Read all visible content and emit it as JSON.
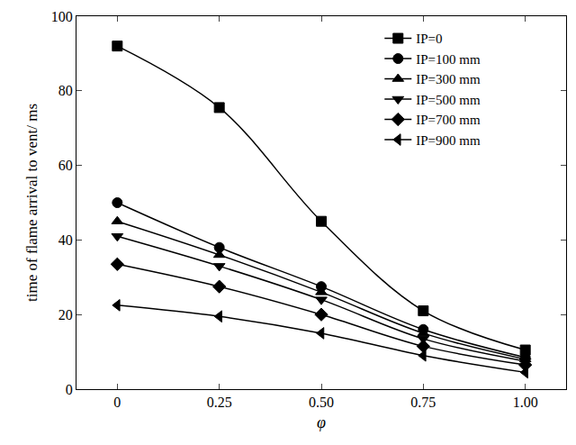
{
  "chart_data": {
    "type": "line",
    "x_label": "φ",
    "y_label": "time of flame arrival to vent/ ms",
    "x": [
      0,
      0.25,
      0.5,
      0.75,
      1
    ],
    "xlim": [
      -0.1,
      1.1
    ],
    "xticks": [
      0,
      0.25,
      {
        "value": 0.5,
        "label": "0.50"
      },
      0.75,
      {
        "value": 1,
        "label": "1.00"
      }
    ],
    "ylim": [
      0,
      100
    ],
    "yticks": [
      0,
      20,
      40,
      60,
      80,
      100
    ],
    "grid": false,
    "legend": "top right",
    "series": [
      {
        "name": "IP=0",
        "color": "#000000",
        "marker": "square",
        "line_style": "solid",
        "values": [
          92,
          75.5,
          45,
          21,
          10.5
        ]
      },
      {
        "name": "IP=100 mm",
        "color": "#000000",
        "marker": "circle",
        "line_style": "solid",
        "values": [
          50,
          38,
          27.5,
          16,
          8.5
        ]
      },
      {
        "name": "IP=300 mm",
        "color": "#000000",
        "marker": "triangle-up",
        "line_style": "solid",
        "values": [
          45,
          36,
          26,
          15,
          8
        ]
      },
      {
        "name": "IP=500 mm",
        "color": "#000000",
        "marker": "triangle-down",
        "line_style": "solid",
        "values": [
          41,
          33,
          24,
          13.5,
          7.5
        ]
      },
      {
        "name": "IP=700 mm",
        "color": "#000000",
        "marker": "diamond",
        "line_style": "solid",
        "values": [
          33.5,
          27.5,
          20,
          11.5,
          6.5
        ]
      },
      {
        "name": "IP=900 mm",
        "color": "#000000",
        "marker": "triangle-left",
        "line_style": "solid",
        "values": [
          22.5,
          19.5,
          15,
          9,
          4.5
        ]
      }
    ]
  }
}
